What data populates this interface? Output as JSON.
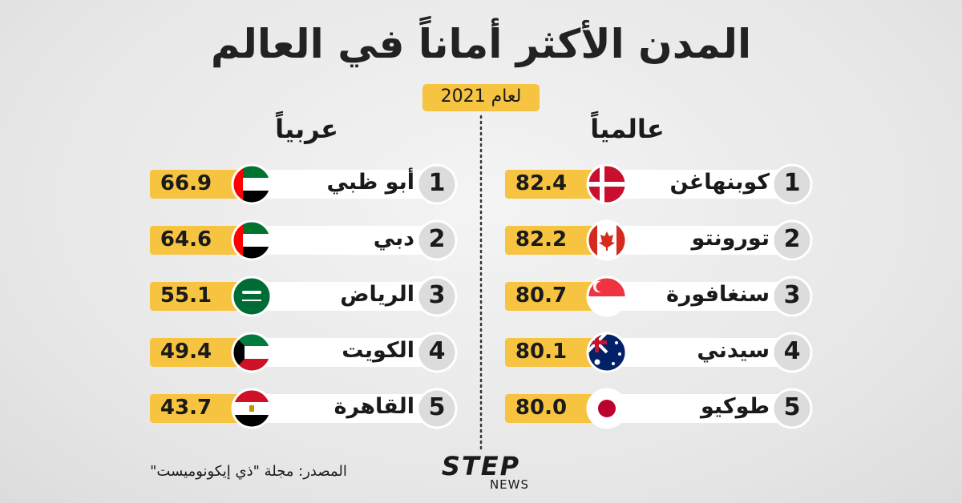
{
  "header": {
    "title": "المدن الأكثر أماناً في العالم",
    "badge": "لعام 2021"
  },
  "world": {
    "heading": "عالمياً",
    "rows": [
      {
        "rank": "1",
        "city": "كوبنهاغن",
        "score": "82.4"
      },
      {
        "rank": "2",
        "city": "تورونتو",
        "score": "82.2"
      },
      {
        "rank": "3",
        "city": "سنغافورة",
        "score": "80.7"
      },
      {
        "rank": "4",
        "city": "سيدني",
        "score": "80.1"
      },
      {
        "rank": "5",
        "city": "طوكيو",
        "score": "80.0"
      }
    ]
  },
  "arab": {
    "heading": "عربياً",
    "rows": [
      {
        "rank": "1",
        "city": "أبو ظبي",
        "score": "66.9"
      },
      {
        "rank": "2",
        "city": "دبي",
        "score": "64.6"
      },
      {
        "rank": "3",
        "city": "الرياض",
        "score": "55.1"
      },
      {
        "rank": "4",
        "city": "الكويت",
        "score": "49.4"
      },
      {
        "rank": "5",
        "city": "القاهرة",
        "score": "43.7"
      }
    ]
  },
  "footer": {
    "source": "المصدر: مجلة \"ذي إيكونوميست\"",
    "logo_main": "STEP",
    "logo_sub": "NEWS"
  }
}
